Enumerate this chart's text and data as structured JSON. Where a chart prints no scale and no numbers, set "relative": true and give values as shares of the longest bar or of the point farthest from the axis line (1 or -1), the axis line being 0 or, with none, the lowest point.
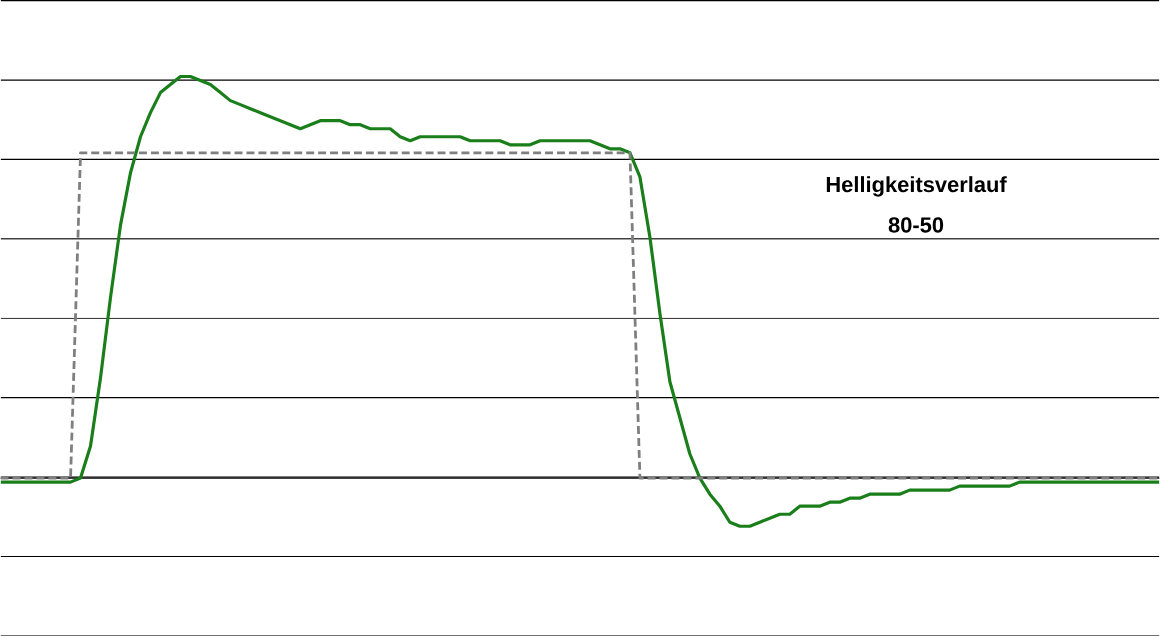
{
  "chart_data": {
    "type": "line",
    "relative": true,
    "grid": "y",
    "categories": [
      null,
      null,
      null,
      null,
      null,
      null,
      null,
      null,
      null,
      null,
      null,
      null,
      null,
      null,
      null,
      null,
      null,
      null,
      null,
      null,
      null,
      null,
      null,
      null,
      null,
      null,
      null,
      null,
      null,
      null,
      null,
      null,
      null,
      null,
      null,
      null,
      null,
      null,
      null,
      null,
      null,
      null,
      null,
      null,
      null,
      null,
      null,
      null,
      null,
      null,
      null,
      null,
      null,
      null,
      null,
      null,
      null,
      null,
      null,
      null,
      null,
      null,
      null,
      null,
      null,
      null,
      null,
      null,
      null,
      null,
      null,
      null,
      null,
      null,
      null,
      null,
      null,
      null,
      null,
      null,
      null,
      null,
      null,
      null,
      null,
      null,
      null,
      null,
      null,
      null,
      null,
      null,
      null,
      null,
      null,
      null,
      null,
      null,
      null,
      null,
      null,
      null,
      null,
      null,
      null,
      null,
      null,
      null,
      null,
      null,
      null,
      null,
      null,
      null,
      null,
      null,
      null
    ],
    "series": [
      {
        "color": "#1a7f1a",
        "line_style": "solid",
        "values": [
          -0.01,
          -0.01,
          -0.01,
          -0.01,
          -0.01,
          -0.01,
          -0.01,
          -0.01,
          0.0,
          0.08,
          0.25,
          0.45,
          0.63,
          0.76,
          0.85,
          0.91,
          0.96,
          0.98,
          1.0,
          1.0,
          0.99,
          0.98,
          0.96,
          0.94,
          0.93,
          0.92,
          0.91,
          0.9,
          0.89,
          0.88,
          0.87,
          0.88,
          0.89,
          0.89,
          0.89,
          0.88,
          0.88,
          0.87,
          0.87,
          0.87,
          0.85,
          0.84,
          0.85,
          0.85,
          0.85,
          0.85,
          0.85,
          0.84,
          0.84,
          0.84,
          0.84,
          0.83,
          0.83,
          0.83,
          0.84,
          0.84,
          0.84,
          0.84,
          0.84,
          0.84,
          0.83,
          0.82,
          0.82,
          0.81,
          0.75,
          0.6,
          0.41,
          0.24,
          0.15,
          0.06,
          0.0,
          -0.04,
          -0.07,
          -0.11,
          -0.12,
          -0.12,
          -0.11,
          -0.1,
          -0.09,
          -0.09,
          -0.07,
          -0.07,
          -0.07,
          -0.06,
          -0.06,
          -0.05,
          -0.05,
          -0.04,
          -0.04,
          -0.04,
          -0.04,
          -0.03,
          -0.03,
          -0.03,
          -0.03,
          -0.03,
          -0.02,
          -0.02,
          -0.02,
          -0.02,
          -0.02,
          -0.02,
          -0.01,
          -0.01,
          -0.01,
          -0.01,
          -0.01,
          -0.01,
          -0.01,
          -0.01,
          -0.01,
          -0.01,
          -0.01,
          -0.01,
          -0.01,
          -0.01,
          -0.01
        ]
      },
      {
        "color": "#7f7f7f",
        "line_style": "dashed",
        "values": [
          0.0,
          0.0,
          0.0,
          0.0,
          0.0,
          0.0,
          0.0,
          0.0,
          0.81,
          0.81,
          0.81,
          0.81,
          0.81,
          0.81,
          0.81,
          0.81,
          0.81,
          0.81,
          0.81,
          0.81,
          0.81,
          0.81,
          0.81,
          0.81,
          0.81,
          0.81,
          0.81,
          0.81,
          0.81,
          0.81,
          0.81,
          0.81,
          0.81,
          0.81,
          0.81,
          0.81,
          0.81,
          0.81,
          0.81,
          0.81,
          0.81,
          0.81,
          0.81,
          0.81,
          0.81,
          0.81,
          0.81,
          0.81,
          0.81,
          0.81,
          0.81,
          0.81,
          0.81,
          0.81,
          0.81,
          0.81,
          0.81,
          0.81,
          0.81,
          0.81,
          0.81,
          0.81,
          0.81,
          0.81,
          0.0,
          0.0,
          0.0,
          0.0,
          0.0,
          0.0,
          0.0,
          0.0,
          0.0,
          0.0,
          0.0,
          0.0,
          0.0,
          0.0,
          0.0,
          0.0,
          0.0,
          0.0,
          0.0,
          0.0,
          0.0,
          0.0,
          0.0,
          0.0,
          0.0,
          0.0,
          0.0,
          0.0,
          0.0,
          0.0,
          0.0,
          0.0,
          0.0,
          0.0,
          0.0,
          0.0,
          0.0,
          0.0,
          0.0,
          0.0,
          0.0,
          0.0,
          0.0,
          0.0,
          0.0,
          0.0,
          0.0,
          0.0,
          0.0,
          0.0,
          0.0,
          0.0,
          0.0
        ]
      }
    ],
    "annotations": [
      "Helligkeitsverlauf",
      "80-50"
    ]
  }
}
